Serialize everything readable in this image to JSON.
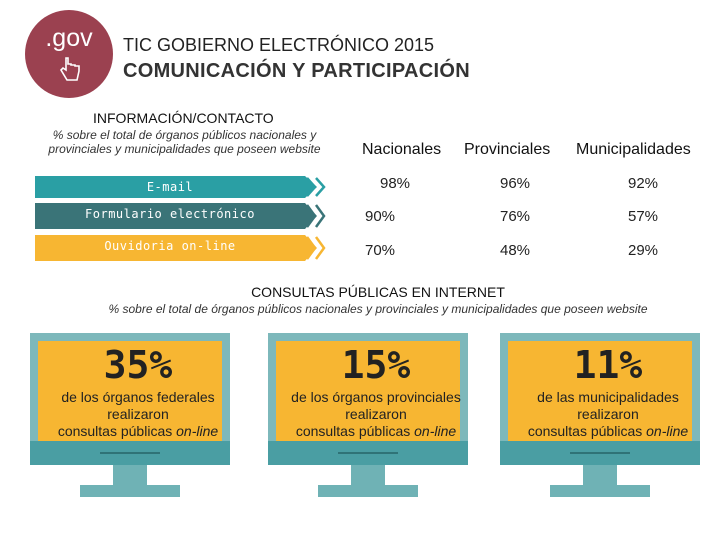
{
  "header": {
    "logo_text": ".gov",
    "supertitle": "TIC GOBIERNO ELECTRÓNICO 2015",
    "title": "COMUNICACIÓN Y PARTICIPACIÓN"
  },
  "info": {
    "heading": "INFORMACIÓN/CONTACTO",
    "subtitle": "% sobre el total de órganos públicos nacionales y provinciales y municipalidades que poseen website",
    "columns": [
      "Nacionales",
      "Provinciales",
      "Municipalidades"
    ],
    "rows": [
      {
        "label": "E-mail",
        "color": "#2a9fa4",
        "values": [
          "98%",
          "96%",
          "92%"
        ]
      },
      {
        "label": "Formulario electrónico",
        "color": "#3a7478",
        "values": [
          "90%",
          "76%",
          "57%"
        ]
      },
      {
        "label": "Ouvidoria on-line",
        "color": "#f7b632",
        "values": [
          "70%",
          "48%",
          "29%"
        ]
      }
    ]
  },
  "consultas": {
    "heading": "CONSULTAS PÚBLICAS EN INTERNET",
    "subtitle": "% sobre el total de órganos públicos nacionales y provinciales y municipalidades que poseen website",
    "items": [
      {
        "value": "35%",
        "line1": "de los órganos federales",
        "line2": "realizaron",
        "line3": "consultas públicas",
        "line3_em": "on-line"
      },
      {
        "value": "15%",
        "line1": "de los órganos provinciales",
        "line2": "realizaron",
        "line3": "consultas públicas",
        "line3_em": "on-line"
      },
      {
        "value": "11%",
        "line1": "de las municipalidades",
        "line2": "realizaron",
        "line3": "consultas públicas",
        "line3_em": "on-line"
      }
    ]
  },
  "colors": {
    "logo": "#9b4150",
    "screen": "#f7b632",
    "monitor": "#4a9ea3"
  }
}
